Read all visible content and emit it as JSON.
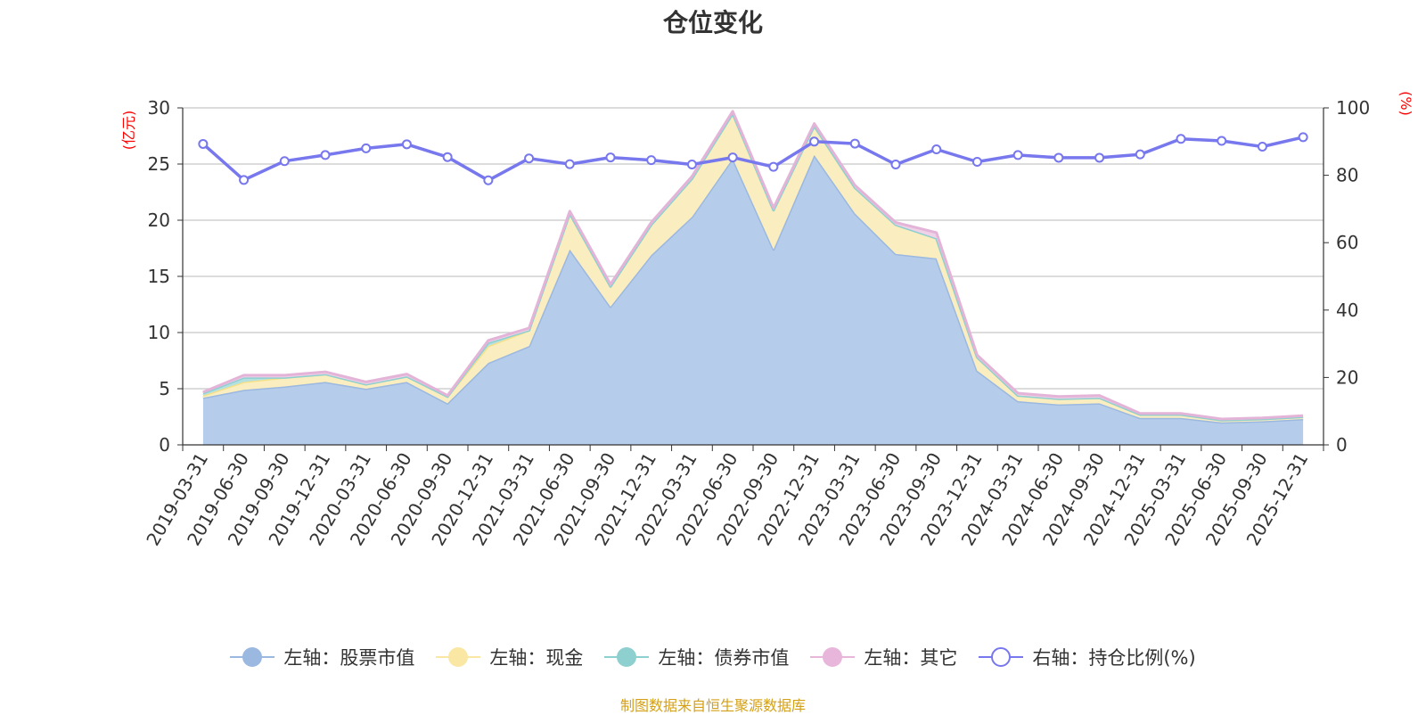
{
  "chart_data": {
    "type": "area",
    "title": "仓位变化",
    "y_left_label": "(亿元)",
    "y_right_label": "(%)",
    "y_left_range": [
      0,
      30
    ],
    "y_right_range": [
      0,
      100
    ],
    "y_left_ticks": [
      0,
      5,
      10,
      15,
      20,
      25,
      30
    ],
    "y_right_ticks": [
      0,
      20,
      40,
      60,
      80,
      100
    ],
    "categories": [
      "2019-03-31",
      "2019-06-30",
      "2019-09-30",
      "2019-12-31",
      "2020-03-31",
      "2020-06-30",
      "2020-09-30",
      "2020-12-31",
      "2021-03-31",
      "2021-06-30",
      "2021-09-30",
      "2021-12-31",
      "2022-03-31",
      "2022-06-30",
      "2022-09-30",
      "2022-12-31",
      "2023-03-31",
      "2023-06-30",
      "2023-09-30",
      "2023-12-31",
      "2024-03-31",
      "2024-06-30",
      "2024-09-30",
      "2024-12-31",
      "2025-03-31",
      "2025-06-30",
      "2025-09-30",
      "2025-12-31"
    ],
    "series": [
      {
        "name": "左轴：股票市值",
        "axis": "left",
        "color": "#9bb8e0",
        "values": [
          4.2,
          4.9,
          5.2,
          5.6,
          5.0,
          5.6,
          3.7,
          7.3,
          8.8,
          17.4,
          12.3,
          16.9,
          20.3,
          25.5,
          17.4,
          25.8,
          20.6,
          17.0,
          16.6,
          6.6,
          3.9,
          3.6,
          3.7,
          2.4,
          2.4,
          2.0,
          2.1,
          2.3
        ]
      },
      {
        "name": "左轴：现金",
        "axis": "left",
        "color": "#f9e7a3",
        "values": [
          0.2,
          0.7,
          0.8,
          0.7,
          0.4,
          0.5,
          0.6,
          1.5,
          1.4,
          3.2,
          1.8,
          2.7,
          3.4,
          4.0,
          3.5,
          2.6,
          2.3,
          2.6,
          1.8,
          1.2,
          0.5,
          0.5,
          0.5,
          0.3,
          0.3,
          0.2,
          0.2,
          0.2
        ]
      },
      {
        "name": "左轴：债券市值",
        "axis": "left",
        "color": "#8ecfd0",
        "values": [
          0.2,
          0.4,
          0.0,
          0.0,
          0.0,
          0.0,
          0.0,
          0.3,
          0.0,
          0.0,
          0.0,
          0.0,
          0.0,
          0.0,
          0.0,
          0.0,
          0.0,
          0.0,
          0.0,
          0.0,
          0.0,
          0.0,
          0.0,
          0.0,
          0.0,
          0.0,
          0.0,
          0.0
        ]
      },
      {
        "name": "左轴：其它",
        "axis": "left",
        "color": "#e8b6da",
        "values": [
          0.1,
          0.2,
          0.2,
          0.2,
          0.2,
          0.2,
          0.1,
          0.2,
          0.2,
          0.2,
          0.2,
          0.2,
          0.2,
          0.2,
          0.2,
          0.2,
          0.2,
          0.2,
          0.5,
          0.2,
          0.2,
          0.2,
          0.2,
          0.1,
          0.1,
          0.1,
          0.1,
          0.1
        ]
      },
      {
        "name": "右轴：持仓比例(%)",
        "axis": "right",
        "color": "#7777ee",
        "values": [
          89.3,
          78.6,
          84.2,
          86.0,
          88.0,
          89.2,
          85.4,
          78.5,
          85.0,
          83.3,
          85.3,
          84.5,
          83.2,
          85.3,
          82.5,
          90.0,
          89.4,
          83.2,
          87.7,
          84.0,
          86.0,
          85.2,
          85.2,
          86.2,
          90.8,
          90.2,
          88.5,
          91.3
        ]
      }
    ]
  },
  "legend": [
    {
      "label": "左轴：股票市值",
      "color": "#9bb8e0",
      "symbol": "filled-circle"
    },
    {
      "label": "左轴：现金",
      "color": "#f9e7a3",
      "symbol": "filled-circle"
    },
    {
      "label": "左轴：债券市值",
      "color": "#8ecfd0",
      "symbol": "filled-circle"
    },
    {
      "label": "左轴：其它",
      "color": "#e8b6da",
      "symbol": "filled-circle"
    },
    {
      "label": "右轴：持仓比例(%)",
      "color": "#7777ee",
      "symbol": "hollow-circle"
    }
  ],
  "source_text": "制图数据来自恒生聚源数据库"
}
